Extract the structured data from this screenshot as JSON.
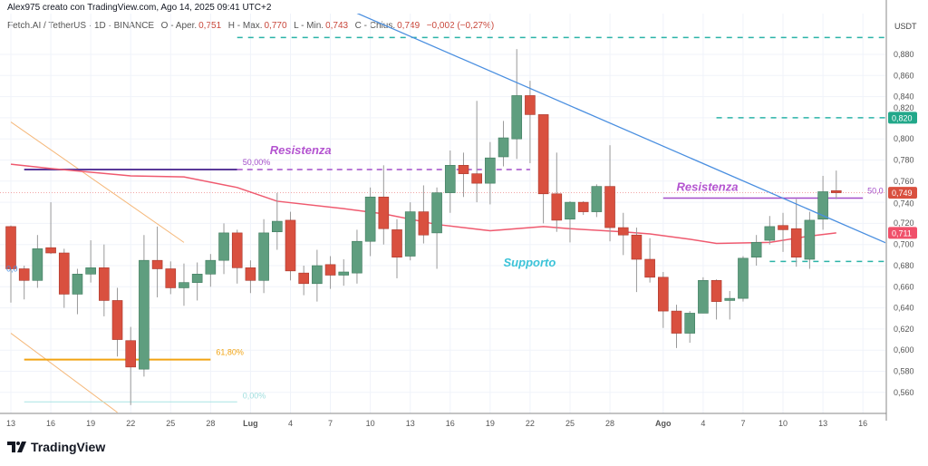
{
  "credit": "Alex975 creato con TradingView.com, Ago 14, 2025 09:41 UTC+2",
  "legend": {
    "symbol": "Fetch.AI / TetherUS · 1D · BINANCE",
    "open_label": "O - Aper.",
    "open": "0,751",
    "high_label": "H - Max.",
    "high": "0,770",
    "low_label": "L - Min.",
    "low": "0,743",
    "close_label": "C - Chius.",
    "close": "0,749",
    "change": "−0,002 (−0,27%)"
  },
  "axis_unit": "USDT",
  "brand": "TradingView",
  "colors": {
    "up": "#5f9e7f",
    "down": "#d9503f",
    "ma": "#ef5a6f",
    "trendline": "#4a8fe0",
    "teal": "#2bb3a8",
    "purple": "#a44fc9",
    "orange": "#f2a413",
    "grid": "#f0f3fa"
  },
  "chart_data": {
    "type": "candlestick",
    "ylim": [
      0.545,
      0.905
    ],
    "grid": true,
    "y_ticks": [
      "0,560",
      "0,580",
      "0,600",
      "0,620",
      "0,640",
      "0,660",
      "0,680",
      "0,700",
      "0,720",
      "0,740",
      "0,760",
      "0,780",
      "0,800",
      "0,820",
      "0,840",
      "0,860",
      "0,880"
    ],
    "x_ticks": [
      {
        "date": "2025-06-13",
        "label": "13"
      },
      {
        "date": "2025-06-16",
        "label": "16"
      },
      {
        "date": "2025-06-19",
        "label": "19"
      },
      {
        "date": "2025-06-22",
        "label": "22"
      },
      {
        "date": "2025-06-25",
        "label": "25"
      },
      {
        "date": "2025-06-28",
        "label": "28"
      },
      {
        "date": "2025-07-01",
        "label": "Lug",
        "bold": true
      },
      {
        "date": "2025-07-04",
        "label": "4"
      },
      {
        "date": "2025-07-07",
        "label": "7"
      },
      {
        "date": "2025-07-10",
        "label": "10"
      },
      {
        "date": "2025-07-13",
        "label": "13"
      },
      {
        "date": "2025-07-16",
        "label": "16"
      },
      {
        "date": "2025-07-19",
        "label": "19"
      },
      {
        "date": "2025-07-22",
        "label": "22"
      },
      {
        "date": "2025-07-25",
        "label": "25"
      },
      {
        "date": "2025-07-28",
        "label": "28"
      },
      {
        "date": "2025-08-01",
        "label": "Ago",
        "bold": true
      },
      {
        "date": "2025-08-04",
        "label": "4"
      },
      {
        "date": "2025-08-07",
        "label": "7"
      },
      {
        "date": "2025-08-10",
        "label": "10"
      },
      {
        "date": "2025-08-13",
        "label": "13"
      },
      {
        "date": "2025-08-16",
        "label": "16"
      }
    ],
    "candles": [
      [
        "2025-06-13",
        0.717,
        0.718,
        0.645,
        0.677
      ],
      [
        "2025-06-14",
        0.677,
        0.68,
        0.648,
        0.666
      ],
      [
        "2025-06-15",
        0.666,
        0.709,
        0.659,
        0.696
      ],
      [
        "2025-06-16",
        0.697,
        0.74,
        0.691,
        0.692
      ],
      [
        "2025-06-17",
        0.692,
        0.696,
        0.64,
        0.653
      ],
      [
        "2025-06-18",
        0.653,
        0.677,
        0.634,
        0.672
      ],
      [
        "2025-06-19",
        0.672,
        0.704,
        0.664,
        0.678
      ],
      [
        "2025-06-20",
        0.678,
        0.7,
        0.632,
        0.647
      ],
      [
        "2025-06-21",
        0.647,
        0.659,
        0.594,
        0.61
      ],
      [
        "2025-06-22",
        0.609,
        0.622,
        0.548,
        0.584
      ],
      [
        "2025-06-23",
        0.582,
        0.709,
        0.575,
        0.685
      ],
      [
        "2025-06-24",
        0.685,
        0.717,
        0.65,
        0.677
      ],
      [
        "2025-06-25",
        0.677,
        0.684,
        0.653,
        0.659
      ],
      [
        "2025-06-26",
        0.659,
        0.682,
        0.642,
        0.664
      ],
      [
        "2025-06-27",
        0.664,
        0.683,
        0.647,
        0.672
      ],
      [
        "2025-06-28",
        0.672,
        0.691,
        0.66,
        0.685
      ],
      [
        "2025-06-29",
        0.685,
        0.72,
        0.672,
        0.711
      ],
      [
        "2025-06-30",
        0.711,
        0.714,
        0.663,
        0.678
      ],
      [
        "2025-07-01",
        0.678,
        0.685,
        0.654,
        0.666
      ],
      [
        "2025-07-02",
        0.666,
        0.724,
        0.654,
        0.711
      ],
      [
        "2025-07-03",
        0.712,
        0.749,
        0.695,
        0.722
      ],
      [
        "2025-07-04",
        0.723,
        0.731,
        0.666,
        0.675
      ],
      [
        "2025-07-05",
        0.673,
        0.68,
        0.652,
        0.663
      ],
      [
        "2025-07-06",
        0.663,
        0.695,
        0.646,
        0.68
      ],
      [
        "2025-07-07",
        0.681,
        0.689,
        0.658,
        0.671
      ],
      [
        "2025-07-08",
        0.671,
        0.686,
        0.661,
        0.674
      ],
      [
        "2025-07-09",
        0.673,
        0.714,
        0.663,
        0.703
      ],
      [
        "2025-07-10",
        0.703,
        0.754,
        0.689,
        0.745
      ],
      [
        "2025-07-11",
        0.745,
        0.775,
        0.7,
        0.715
      ],
      [
        "2025-07-12",
        0.714,
        0.724,
        0.668,
        0.688
      ],
      [
        "2025-07-13",
        0.689,
        0.74,
        0.685,
        0.731
      ],
      [
        "2025-07-14",
        0.731,
        0.756,
        0.701,
        0.709
      ],
      [
        "2025-07-15",
        0.711,
        0.754,
        0.677,
        0.749
      ],
      [
        "2025-07-16",
        0.749,
        0.789,
        0.73,
        0.775
      ],
      [
        "2025-07-17",
        0.775,
        0.787,
        0.745,
        0.767
      ],
      [
        "2025-07-18",
        0.767,
        0.836,
        0.74,
        0.758
      ],
      [
        "2025-07-19",
        0.758,
        0.797,
        0.738,
        0.782
      ],
      [
        "2025-07-20",
        0.783,
        0.817,
        0.774,
        0.801
      ],
      [
        "2025-07-21",
        0.8,
        0.885,
        0.781,
        0.841
      ],
      [
        "2025-07-22",
        0.841,
        0.855,
        0.777,
        0.823
      ],
      [
        "2025-07-23",
        0.823,
        0.823,
        0.72,
        0.748
      ],
      [
        "2025-07-24",
        0.748,
        0.787,
        0.712,
        0.723
      ],
      [
        "2025-07-25",
        0.724,
        0.741,
        0.702,
        0.74
      ],
      [
        "2025-07-26",
        0.74,
        0.741,
        0.728,
        0.731
      ],
      [
        "2025-07-27",
        0.731,
        0.757,
        0.726,
        0.755
      ],
      [
        "2025-07-28",
        0.755,
        0.794,
        0.703,
        0.716
      ],
      [
        "2025-07-29",
        0.716,
        0.73,
        0.69,
        0.709
      ],
      [
        "2025-07-30",
        0.709,
        0.716,
        0.655,
        0.686
      ],
      [
        "2025-07-31",
        0.686,
        0.706,
        0.664,
        0.669
      ],
      [
        "2025-08-01",
        0.669,
        0.674,
        0.621,
        0.637
      ],
      [
        "2025-08-02",
        0.637,
        0.643,
        0.602,
        0.616
      ],
      [
        "2025-08-03",
        0.616,
        0.637,
        0.607,
        0.635
      ],
      [
        "2025-08-04",
        0.635,
        0.669,
        0.635,
        0.666
      ],
      [
        "2025-08-05",
        0.666,
        0.667,
        0.629,
        0.646
      ],
      [
        "2025-08-06",
        0.647,
        0.656,
        0.629,
        0.649
      ],
      [
        "2025-08-07",
        0.649,
        0.689,
        0.646,
        0.687
      ],
      [
        "2025-08-08",
        0.688,
        0.709,
        0.68,
        0.702
      ],
      [
        "2025-08-09",
        0.704,
        0.727,
        0.7,
        0.717
      ],
      [
        "2025-08-10",
        0.718,
        0.73,
        0.693,
        0.714
      ],
      [
        "2025-08-11",
        0.715,
        0.743,
        0.679,
        0.688
      ],
      [
        "2025-08-12",
        0.686,
        0.731,
        0.677,
        0.723
      ],
      [
        "2025-08-13",
        0.724,
        0.765,
        0.714,
        0.75
      ],
      [
        "2025-08-14",
        0.751,
        0.77,
        0.743,
        0.749
      ]
    ],
    "moving_average": [
      [
        "2025-06-13",
        0.776
      ],
      [
        "2025-06-16",
        0.772
      ],
      [
        "2025-06-22",
        0.765
      ],
      [
        "2025-06-26",
        0.764
      ],
      [
        "2025-06-30",
        0.754
      ],
      [
        "2025-07-03",
        0.741
      ],
      [
        "2025-07-08",
        0.734
      ],
      [
        "2025-07-11",
        0.729
      ],
      [
        "2025-07-15",
        0.719
      ],
      [
        "2025-07-19",
        0.713
      ],
      [
        "2025-07-23",
        0.717
      ],
      [
        "2025-07-25",
        0.715
      ],
      [
        "2025-07-29",
        0.712
      ],
      [
        "2025-07-31",
        0.71
      ],
      [
        "2025-08-03",
        0.705
      ],
      [
        "2025-08-05",
        0.701
      ],
      [
        "2025-08-09",
        0.702
      ],
      [
        "2025-08-12",
        0.708
      ],
      [
        "2025-08-14",
        0.711
      ]
    ],
    "price_badges": [
      {
        "label": "0,820",
        "price": 0.82,
        "color": "#22a88a"
      },
      {
        "label": "0,749",
        "price": 0.749,
        "color": "#d9503f"
      },
      {
        "label": "0,711",
        "price": 0.711,
        "color": "#f0506a"
      }
    ],
    "drawings": {
      "trendline": {
        "from": [
          "2025-07-09",
          0.919
        ],
        "to": [
          "2025-08-18",
          0.7
        ]
      },
      "teal_dashed": [
        {
          "from": "2025-06-30",
          "price": 0.896
        },
        {
          "from": "2025-08-05",
          "price": 0.82
        },
        {
          "from": "2025-08-09",
          "price": 0.684
        }
      ],
      "fib_50": {
        "from": "2025-06-14",
        "to": "2025-06-30",
        "dashed_to": "2025-07-22",
        "price": 0.771,
        "label": "50,00%"
      },
      "fib_618": {
        "from": "2025-06-14",
        "to": "2025-06-28",
        "price": 0.591,
        "label": "61,80%"
      },
      "fib_0": {
        "from": "2025-06-14",
        "to": "2025-06-30",
        "price": 0.551,
        "label": "0,00%"
      },
      "fib_0_left_label": {
        "date": "2025-06-13",
        "price": 0.677,
        "label": "0,0"
      },
      "resistance_2": {
        "from": "2025-08-01",
        "to": "2025-08-16",
        "price": 0.744,
        "label": "50,0"
      },
      "orange_diagonals": [
        {
          "from": [
            "2025-06-13",
            0.816
          ],
          "to": [
            "2025-06-26",
            0.702
          ]
        },
        {
          "from": [
            "2025-06-13",
            0.616
          ],
          "to": [
            "2025-06-21",
            0.541
          ]
        }
      ],
      "texts": [
        {
          "text": "Resistenza",
          "date": "2025-06-30",
          "price": 0.782,
          "color": "#b454d0"
        },
        {
          "text": "Resistenza",
          "date": "2025-08-02",
          "price": 0.751,
          "color": "#b454d0"
        },
        {
          "text": "Supporto",
          "date": "2025-07-20",
          "price": 0.679,
          "color": "#3cc3d8"
        }
      ]
    }
  }
}
